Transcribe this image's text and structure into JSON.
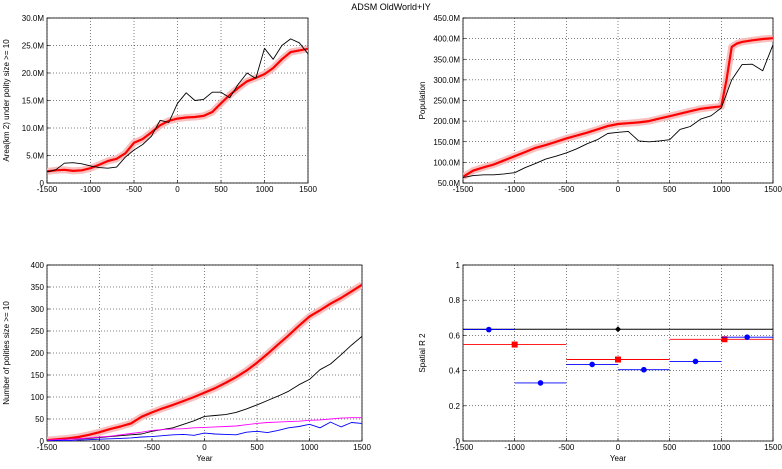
{
  "figure": {
    "title": "ADSM OldWorld+IY"
  },
  "chart_data": [
    {
      "type": "line",
      "ylabel": "Area(km 2) under polity size >= 10",
      "xlim": [
        -1500,
        1500
      ],
      "ylim": [
        0,
        30000000
      ],
      "xticks": [
        -1500,
        -1000,
        -500,
        0,
        500,
        1000,
        1500
      ],
      "xtick_labels": [
        "-1500",
        "-1000",
        "-500",
        "0",
        "500",
        "1000",
        "1500"
      ],
      "yticks": [
        0,
        5000000,
        10000000,
        15000000,
        20000000,
        25000000,
        30000000
      ],
      "ytick_labels": [
        "0",
        "5.0M",
        "10.0M",
        "15.0M",
        "20.0M",
        "25.0M",
        "30.0M"
      ],
      "grid": true,
      "series": [
        {
          "color": "#ff0000",
          "band": true,
          "x": [
            -1500,
            -1400,
            -1300,
            -1200,
            -1100,
            -1000,
            -900,
            -800,
            -700,
            -600,
            -500,
            -400,
            -300,
            -200,
            -100,
            0,
            100,
            200,
            300,
            400,
            500,
            600,
            700,
            800,
            900,
            1000,
            1100,
            1200,
            1300,
            1400,
            1500
          ],
          "y": [
            2100000,
            2300000,
            2400000,
            2200000,
            2300000,
            2700000,
            3300000,
            4000000,
            4400000,
            5400000,
            7300000,
            8000000,
            9200000,
            10500000,
            11300000,
            11700000,
            11900000,
            12000000,
            12200000,
            12900000,
            14500000,
            16000000,
            17300000,
            18500000,
            19100000,
            19800000,
            20900000,
            22500000,
            23800000,
            24100000,
            24400000
          ]
        },
        {
          "color": "#000000",
          "x": [
            -1500,
            -1400,
            -1300,
            -1200,
            -1100,
            -1000,
            -900,
            -800,
            -700,
            -600,
            -500,
            -400,
            -300,
            -200,
            -100,
            0,
            100,
            200,
            300,
            400,
            500,
            600,
            700,
            800,
            900,
            1000,
            1100,
            1200,
            1300,
            1400,
            1500
          ],
          "y": [
            2000000,
            2400000,
            3600000,
            3700000,
            3500000,
            3100000,
            2800000,
            2700000,
            2900000,
            4700000,
            6000000,
            7000000,
            8500000,
            11400000,
            11000000,
            14500000,
            16400000,
            15000000,
            15200000,
            16500000,
            16500000,
            15500000,
            18000000,
            20000000,
            19000000,
            24500000,
            22500000,
            25000000,
            26200000,
            25500000,
            23500000
          ]
        }
      ]
    },
    {
      "type": "line",
      "ylabel": "Population",
      "xlim": [
        -1500,
        1500
      ],
      "ylim": [
        50000000,
        450000000
      ],
      "xticks": [
        -1500,
        -1000,
        -500,
        0,
        500,
        1000,
        1500
      ],
      "xtick_labels": [
        "-1500",
        "-1000",
        "-500",
        "0",
        "500",
        "1000",
        "1500"
      ],
      "yticks": [
        50000000,
        100000000,
        150000000,
        200000000,
        250000000,
        300000000,
        350000000,
        400000000,
        450000000
      ],
      "ytick_labels": [
        "50.0M",
        "100.0M",
        "150.0M",
        "200.0M",
        "250.0M",
        "300.0M",
        "350.0M",
        "400.0M",
        "450.0M"
      ],
      "grid": true,
      "series": [
        {
          "color": "#ff0000",
          "band": true,
          "x": [
            -1500,
            -1400,
            -1300,
            -1200,
            -1100,
            -1000,
            -900,
            -800,
            -700,
            -600,
            -500,
            -400,
            -300,
            -200,
            -100,
            0,
            100,
            200,
            300,
            400,
            500,
            600,
            700,
            800,
            900,
            1000,
            1050,
            1100,
            1150,
            1200,
            1300,
            1400,
            1500
          ],
          "y": [
            65000000,
            80000000,
            88000000,
            95000000,
            105000000,
            115000000,
            125000000,
            135000000,
            142000000,
            150000000,
            158000000,
            165000000,
            172000000,
            180000000,
            188000000,
            193000000,
            195000000,
            197000000,
            200000000,
            206000000,
            212000000,
            218000000,
            224000000,
            230000000,
            233000000,
            236000000,
            300000000,
            380000000,
            388000000,
            392000000,
            396000000,
            399000000,
            401000000
          ]
        },
        {
          "color": "#000000",
          "x": [
            -1500,
            -1400,
            -1300,
            -1200,
            -1100,
            -1000,
            -900,
            -800,
            -700,
            -600,
            -500,
            -400,
            -300,
            -200,
            -100,
            0,
            100,
            200,
            300,
            400,
            500,
            600,
            700,
            800,
            900,
            1000,
            1100,
            1200,
            1300,
            1400,
            1500
          ],
          "y": [
            63000000,
            68000000,
            70000000,
            70000000,
            72000000,
            75000000,
            87000000,
            97000000,
            108000000,
            115000000,
            123000000,
            133000000,
            145000000,
            155000000,
            170000000,
            173000000,
            175000000,
            152000000,
            150000000,
            152000000,
            155000000,
            180000000,
            187000000,
            205000000,
            213000000,
            232000000,
            300000000,
            337000000,
            338000000,
            322000000,
            385000000
          ]
        }
      ]
    },
    {
      "type": "line",
      "xlabel": "Year",
      "ylabel": "Number of polities size >= 10",
      "xlim": [
        -1500,
        1500
      ],
      "ylim": [
        0,
        400
      ],
      "xticks": [
        -1500,
        -1000,
        -500,
        0,
        500,
        1000,
        1500
      ],
      "xtick_labels": [
        "-1500",
        "-1000",
        "-500",
        "0",
        "500",
        "1000",
        "1500"
      ],
      "yticks": [
        0,
        50,
        100,
        150,
        200,
        250,
        300,
        350,
        400
      ],
      "ytick_labels": [
        "0",
        "50",
        "100",
        "150",
        "200",
        "250",
        "300",
        "350",
        "400"
      ],
      "grid": true,
      "series": [
        {
          "color": "#ff0000",
          "band": true,
          "x": [
            -1500,
            -1400,
            -1300,
            -1200,
            -1100,
            -1000,
            -900,
            -800,
            -700,
            -600,
            -500,
            -400,
            -300,
            -200,
            -100,
            0,
            100,
            200,
            300,
            400,
            500,
            600,
            700,
            800,
            900,
            1000,
            1100,
            1200,
            1300,
            1400,
            1500
          ],
          "y": [
            2,
            4,
            6,
            9,
            14,
            20,
            27,
            33,
            40,
            55,
            65,
            74,
            82,
            91,
            100,
            110,
            120,
            132,
            145,
            160,
            178,
            198,
            219,
            240,
            262,
            283,
            297,
            312,
            325,
            340,
            355
          ]
        },
        {
          "color": "#000000",
          "x": [
            -1500,
            -1400,
            -1300,
            -1200,
            -1100,
            -1000,
            -900,
            -800,
            -700,
            -600,
            -500,
            -400,
            -300,
            -200,
            -100,
            0,
            100,
            200,
            300,
            400,
            500,
            600,
            700,
            800,
            900,
            1000,
            1100,
            1200,
            1300,
            1400,
            1500
          ],
          "y": [
            0,
            2,
            4,
            5,
            6,
            8,
            10,
            12,
            14,
            16,
            22,
            26,
            30,
            38,
            46,
            56,
            58,
            60,
            65,
            73,
            82,
            92,
            102,
            113,
            128,
            140,
            162,
            175,
            196,
            218,
            238
          ]
        },
        {
          "color": "#ff00ff",
          "x": [
            -1500,
            -1400,
            -1300,
            -1200,
            -1100,
            -1000,
            -900,
            -800,
            -700,
            -600,
            -500,
            -400,
            -300,
            -200,
            -100,
            0,
            100,
            200,
            300,
            400,
            500,
            600,
            700,
            800,
            900,
            1000,
            1100,
            1200,
            1300,
            1400,
            1500
          ],
          "y": [
            2,
            3,
            4,
            5,
            7,
            9,
            11,
            14,
            17,
            20,
            24,
            26,
            27,
            28,
            30,
            31,
            32,
            33,
            34,
            37,
            40,
            42,
            43,
            44,
            45,
            47,
            48,
            50,
            52,
            53,
            53
          ]
        },
        {
          "color": "#0000ff",
          "x": [
            -1500,
            -1400,
            -1300,
            -1200,
            -1100,
            -1000,
            -900,
            -800,
            -700,
            -600,
            -500,
            -400,
            -300,
            -200,
            -100,
            0,
            100,
            200,
            300,
            400,
            500,
            600,
            700,
            800,
            900,
            1000,
            1100,
            1200,
            1300,
            1400,
            1500
          ],
          "y": [
            0,
            1,
            1,
            2,
            3,
            4,
            5,
            6,
            7,
            9,
            10,
            12,
            14,
            15,
            13,
            18,
            16,
            15,
            14,
            20,
            22,
            19,
            24,
            30,
            33,
            38,
            30,
            43,
            32,
            42,
            40
          ]
        }
      ]
    },
    {
      "type": "scatter",
      "xlabel": "Year",
      "ylabel": "Spatial R 2",
      "xlim": [
        -1500,
        1500
      ],
      "ylim": [
        0,
        1
      ],
      "xticks": [
        -1500,
        -1000,
        -500,
        0,
        500,
        1000,
        1500
      ],
      "xtick_labels": [
        "-1500",
        "-1000",
        "-500",
        "0",
        "500",
        "1000",
        "1500"
      ],
      "yticks": [
        0,
        0.2,
        0.4,
        0.6,
        0.8,
        1
      ],
      "ytick_labels": [
        "0",
        "0.2",
        "0.4",
        "0.6",
        "0.8",
        "1"
      ],
      "grid": true,
      "segments": [
        {
          "color": "#000000",
          "marker": "diamond",
          "x0": -1500,
          "x1": 1500,
          "y": 0.635,
          "mx": 0
        },
        {
          "color": "#ff0000",
          "marker": "square",
          "x0": -1500,
          "x1": -500,
          "y": 0.548,
          "mx": -1000
        },
        {
          "color": "#ff0000",
          "marker": "square",
          "x0": -500,
          "x1": 500,
          "y": 0.463,
          "mx": 0
        },
        {
          "color": "#ff0000",
          "marker": "square",
          "x0": 500,
          "x1": 1500,
          "y": 0.578,
          "mx": 1030
        },
        {
          "color": "#0000ff",
          "marker": "circle",
          "x0": -1500,
          "x1": -1000,
          "y": 0.633,
          "mx": -1250
        },
        {
          "color": "#0000ff",
          "marker": "circle",
          "x0": -1000,
          "x1": -500,
          "y": 0.33,
          "mx": -750
        },
        {
          "color": "#0000ff",
          "marker": "circle",
          "x0": -500,
          "x1": 0,
          "y": 0.435,
          "mx": -250
        },
        {
          "color": "#0000ff",
          "marker": "circle",
          "x0": 0,
          "x1": 500,
          "y": 0.405,
          "mx": 250
        },
        {
          "color": "#0000ff",
          "marker": "circle",
          "x0": 500,
          "x1": 1000,
          "y": 0.452,
          "mx": 750
        },
        {
          "color": "#0000ff",
          "marker": "circle",
          "x0": 1000,
          "x1": 1500,
          "y": 0.59,
          "mx": 1250
        }
      ]
    }
  ]
}
